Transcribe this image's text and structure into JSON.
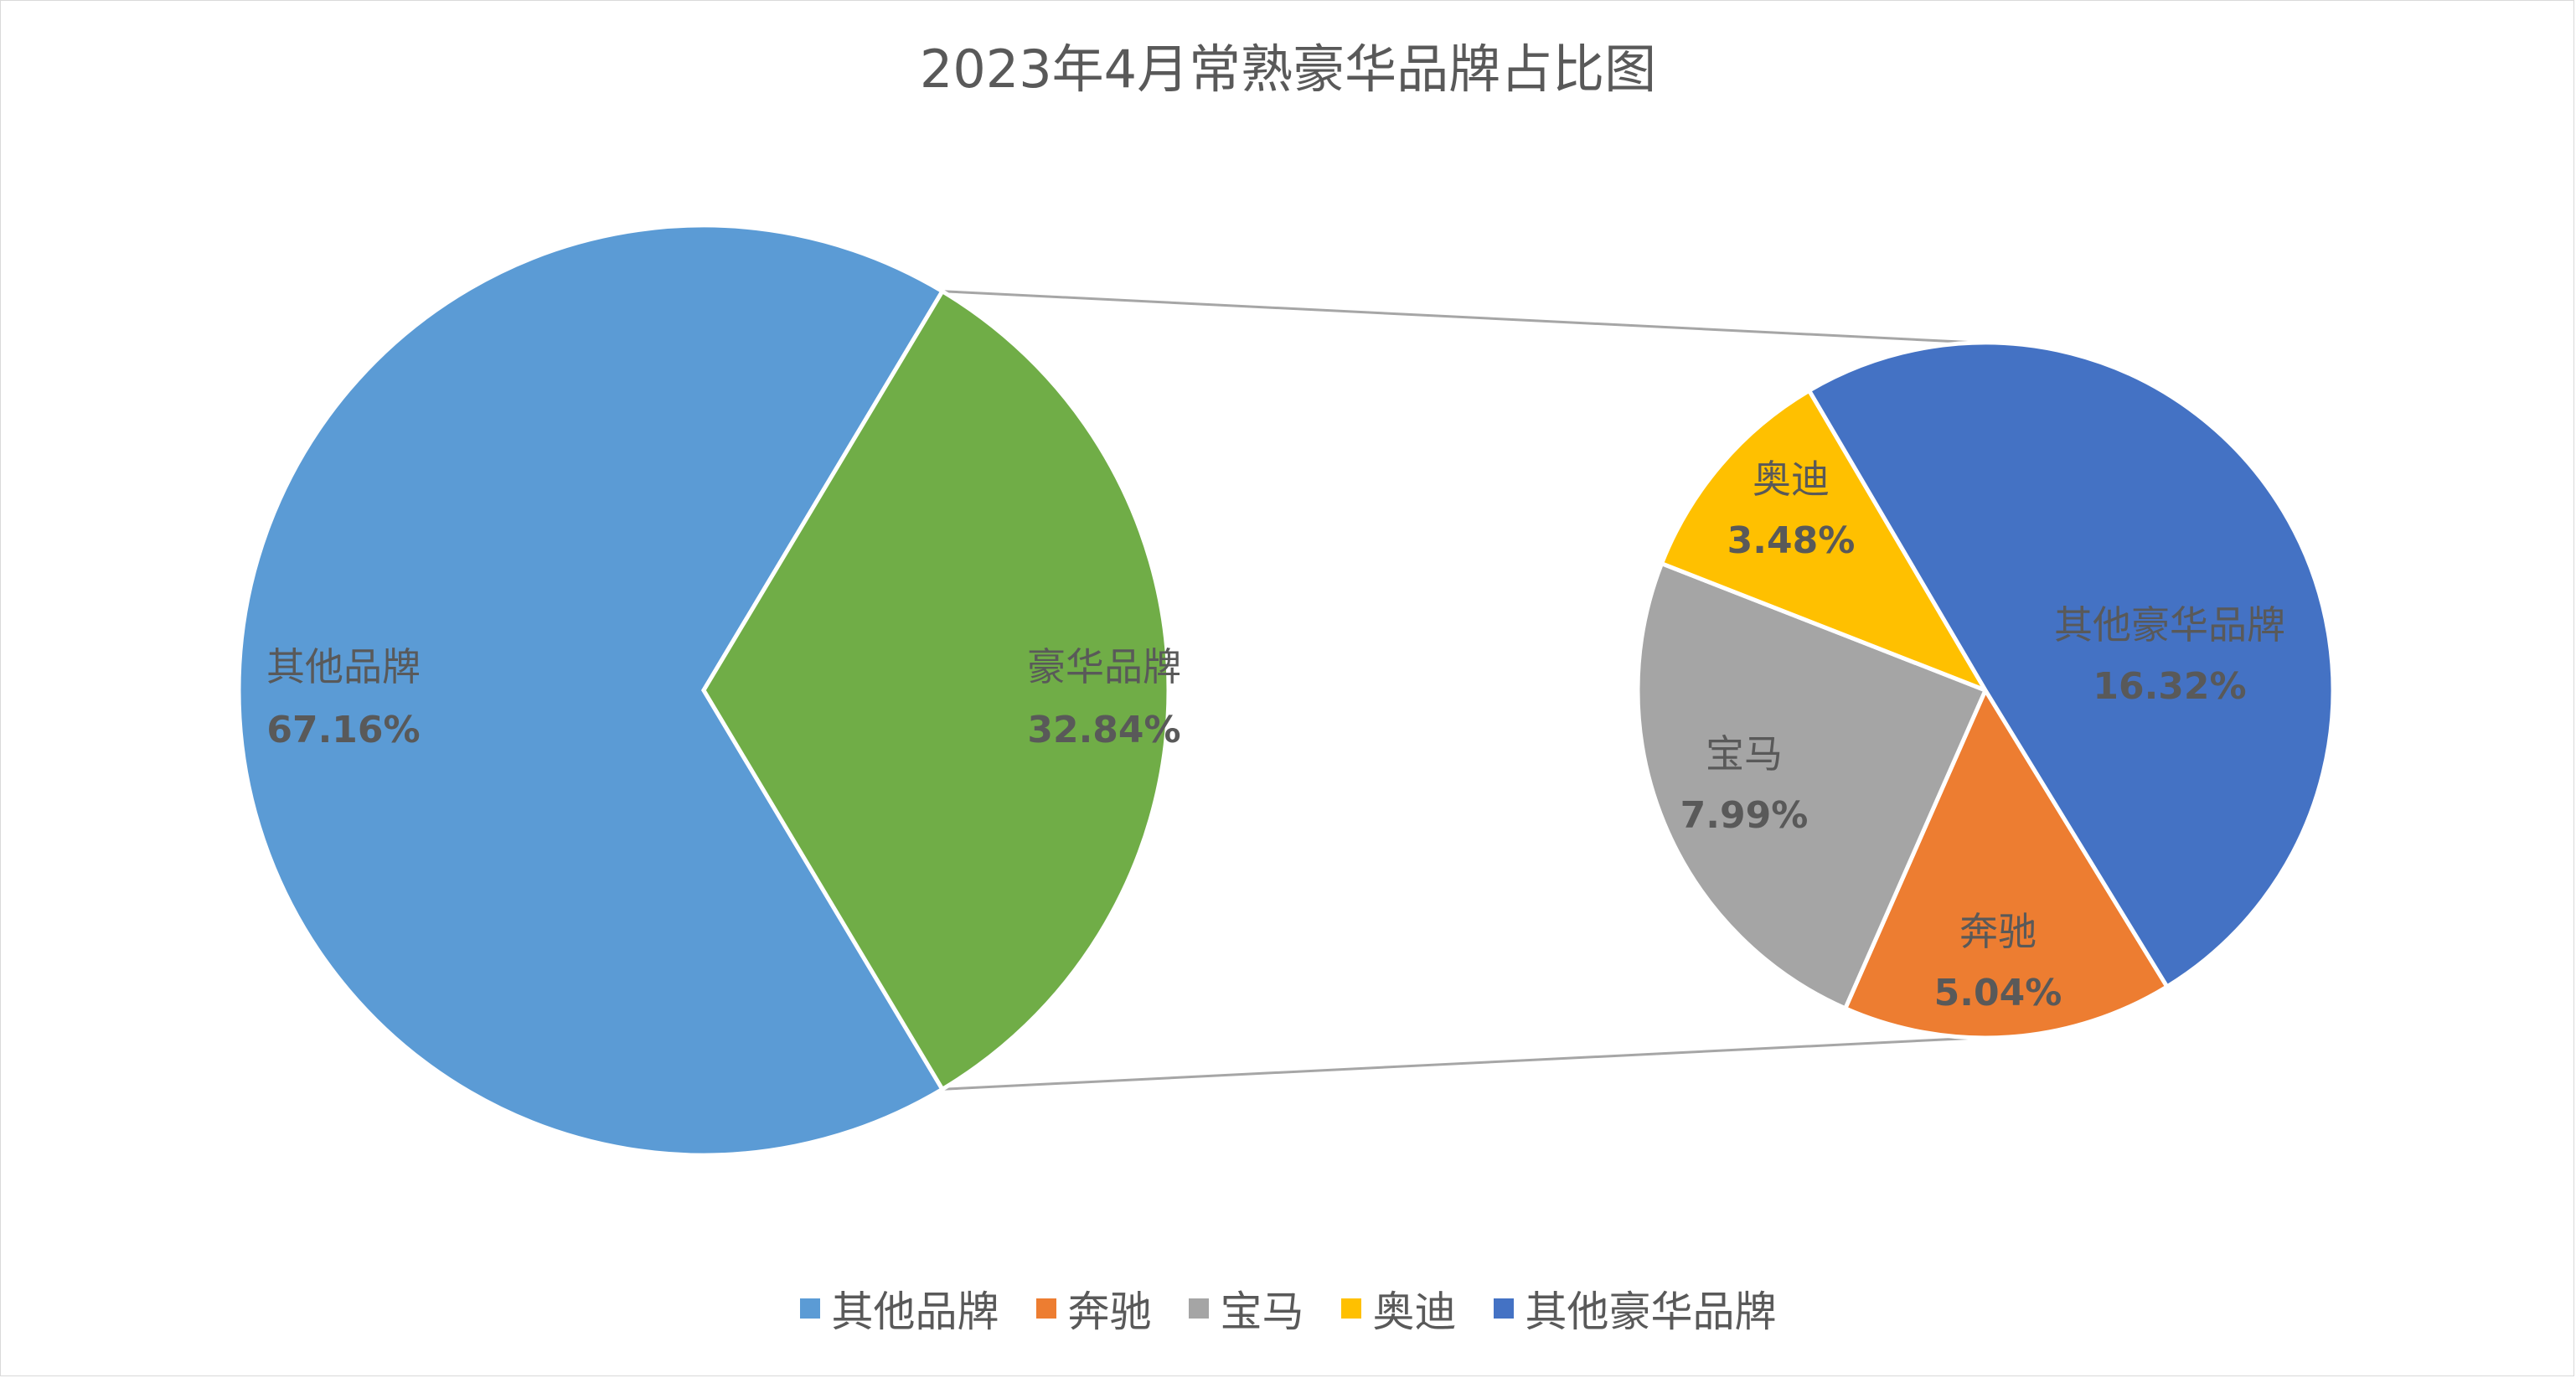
{
  "chart_data": {
    "type": "pie",
    "subtype": "pie-of-pie",
    "title": "2023年4月常熟豪华品牌占比图",
    "main_pie": {
      "slices": [
        {
          "name": "其他品牌",
          "value": 67.16,
          "label": "67.16%",
          "color": "#5B9BD5"
        },
        {
          "name": "豪华品牌",
          "value": 32.84,
          "label": "32.84%",
          "color": "#70AD47"
        }
      ]
    },
    "secondary_pie": {
      "slices": [
        {
          "name": "奔驰",
          "value": 5.04,
          "label": "5.04%",
          "color": "#ED7D31"
        },
        {
          "name": "宝马",
          "value": 7.99,
          "label": "7.99%",
          "color": "#A5A5A5"
        },
        {
          "name": "奥迪",
          "value": 3.48,
          "label": "3.48%",
          "color": "#FFC000"
        },
        {
          "name": "其他豪华品牌",
          "value": 16.32,
          "label": "16.32%",
          "color": "#4472C4"
        }
      ]
    },
    "legend": {
      "position": "bottom",
      "items": [
        {
          "name": "其他品牌",
          "color": "#5B9BD5"
        },
        {
          "name": "奔驰",
          "color": "#ED7D31"
        },
        {
          "name": "宝马",
          "color": "#A5A5A5"
        },
        {
          "name": "奥迪",
          "color": "#FFC000"
        },
        {
          "name": "其他豪华品牌",
          "color": "#4472C4"
        }
      ]
    }
  }
}
